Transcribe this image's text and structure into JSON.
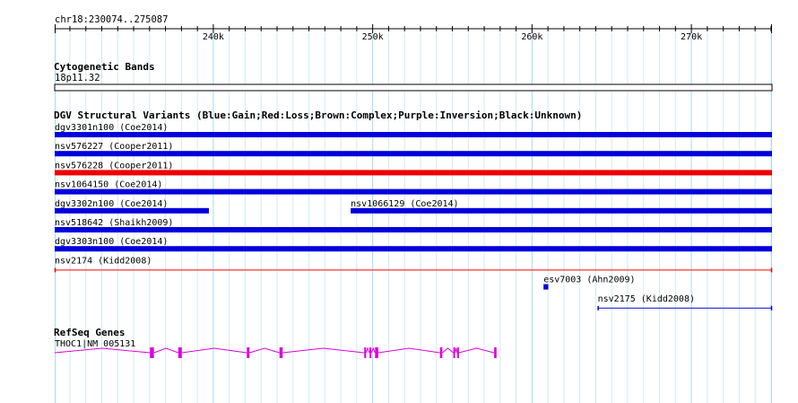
{
  "ruler": {
    "region": "chr18:230074..275087",
    "start": 230074,
    "end": 275087,
    "ticks": [
      {
        "pos": 240000,
        "label": "240k"
      },
      {
        "pos": 250000,
        "label": "250k"
      },
      {
        "pos": 260000,
        "label": "260k"
      },
      {
        "pos": 270000,
        "label": "270k"
      }
    ]
  },
  "cytoband_track": {
    "title": "Cytogenetic Bands",
    "band_label": "18p11.32"
  },
  "dgv_track": {
    "title": "DGV Structural Variants (Blue:Gain;Red:Loss;Brown:Complex;Purple:Inversion;Black:Unknown)",
    "colors": {
      "gain": "#0000dd",
      "loss": "#ee0000",
      "loss_thin": "#ff0000",
      "complex": "#8b4513",
      "inversion": "#800080",
      "unknown": "#000000"
    },
    "variants": [
      {
        "label": "dgv3301n100 (Coe2014)",
        "row": 0,
        "start": 230074,
        "end": 275087,
        "type": "gain",
        "style": "thick"
      },
      {
        "label": "nsv576227 (Cooper2011)",
        "row": 1,
        "start": 230074,
        "end": 275087,
        "type": "gain",
        "style": "thick"
      },
      {
        "label": "nsv576228 (Cooper2011)",
        "row": 2,
        "start": 230074,
        "end": 275087,
        "type": "loss",
        "style": "thick"
      },
      {
        "label": "nsv1064150 (Coe2014)",
        "row": 3,
        "start": 230074,
        "end": 275087,
        "type": "gain",
        "style": "thick"
      },
      {
        "label": "dgv3302n100 (Coe2014)",
        "row": 4,
        "start": 230074,
        "end": 239750,
        "type": "gain",
        "style": "thick"
      },
      {
        "label": "nsv1066129 (Coe2014)",
        "row": 4,
        "start": 248650,
        "end": 275087,
        "type": "gain",
        "style": "thick"
      },
      {
        "label": "nsv518642 (Shaikh2009)",
        "row": 5,
        "start": 230074,
        "end": 275087,
        "type": "gain",
        "style": "thick"
      },
      {
        "label": "dgv3303n100 (Coe2014)",
        "row": 6,
        "start": 230074,
        "end": 275087,
        "type": "gain",
        "style": "thick"
      },
      {
        "label": "nsv2174 (Kidd2008)",
        "row": 7,
        "start": 230074,
        "end": 275087,
        "type": "loss",
        "style": "thin"
      },
      {
        "label": "esv7003 (Ahn2009)",
        "row": 8,
        "start": 260750,
        "end": 261050,
        "type": "gain",
        "style": "thick"
      },
      {
        "label": "nsv2175 (Kidd2008)",
        "row": 9,
        "start": 264150,
        "end": 275087,
        "type": "gain",
        "style": "thin"
      }
    ]
  },
  "refseq_track": {
    "title": "RefSeq Genes",
    "gene_label": "THOC1|NM_005131",
    "color": "#dd00dd",
    "gene_start": 230074,
    "gene_end": 257800,
    "exons": [
      {
        "start": 236050,
        "end": 236300
      },
      {
        "start": 237830,
        "end": 238050
      },
      {
        "start": 242130,
        "end": 242300
      },
      {
        "start": 244180,
        "end": 244380
      },
      {
        "start": 249500,
        "end": 249600
      },
      {
        "start": 249830,
        "end": 249950
      },
      {
        "start": 250180,
        "end": 250380
      },
      {
        "start": 254250,
        "end": 254400
      },
      {
        "start": 255090,
        "end": 255200
      },
      {
        "start": 255330,
        "end": 255430
      },
      {
        "start": 257650,
        "end": 257800
      }
    ]
  }
}
